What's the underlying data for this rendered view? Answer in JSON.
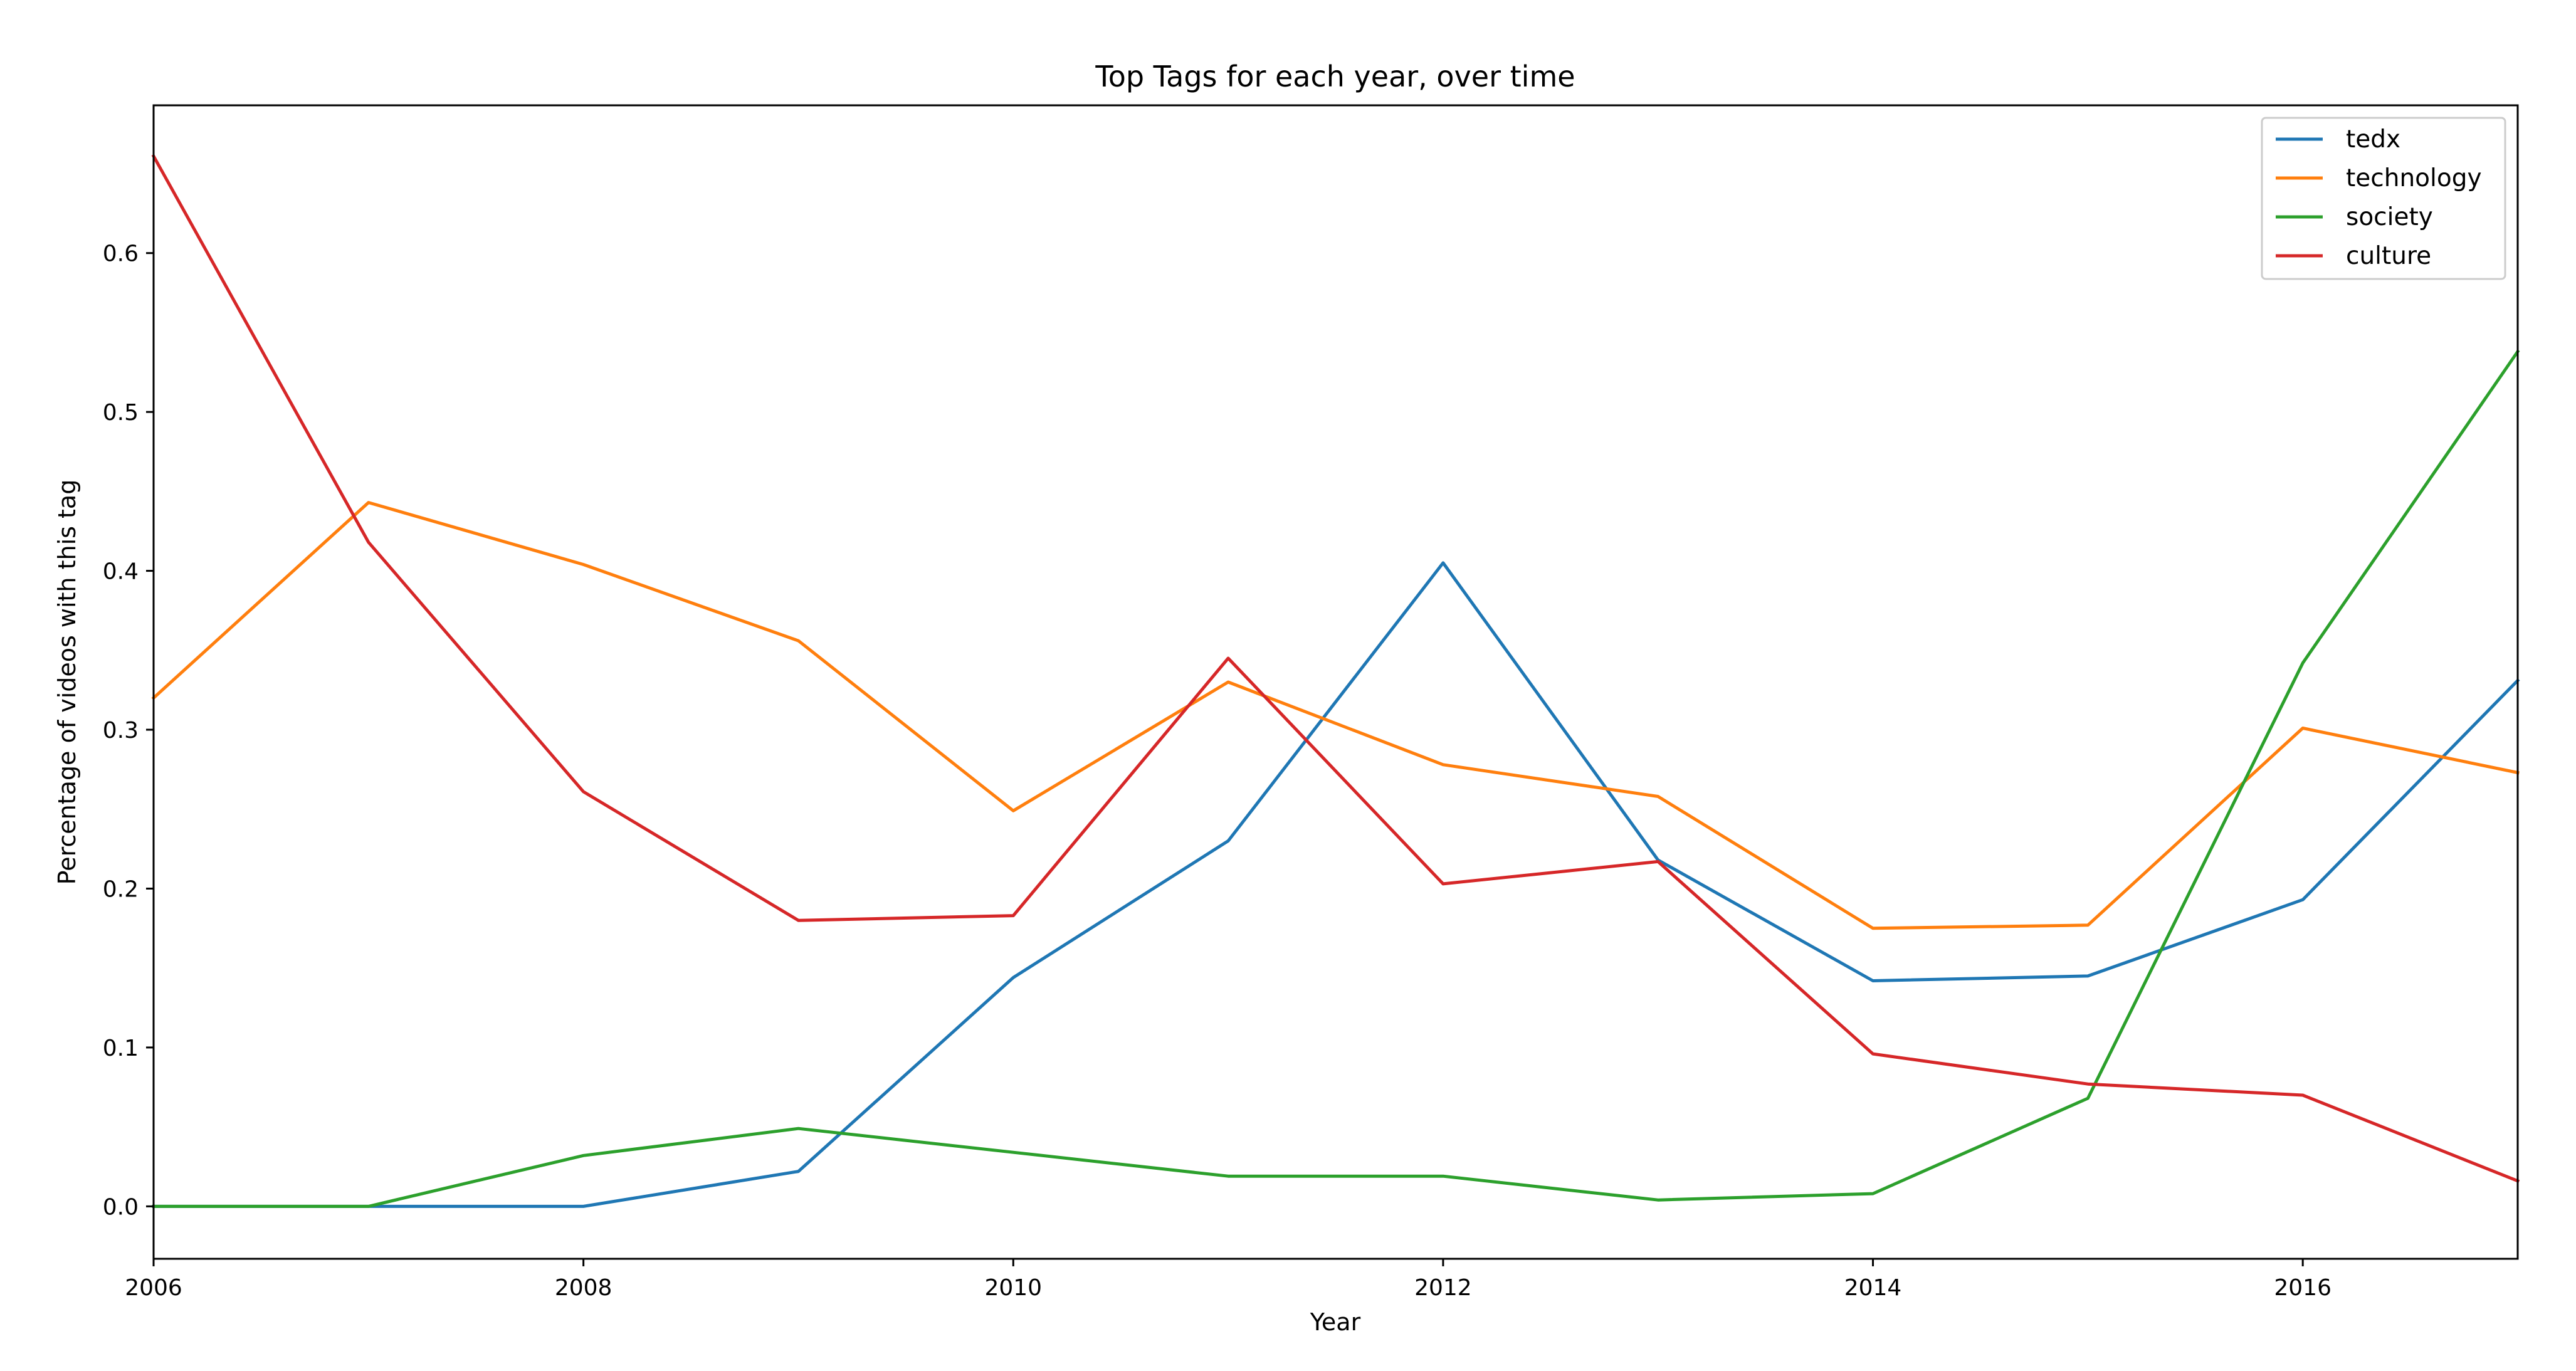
{
  "chart_data": {
    "type": "line",
    "title": "Top Tags for each year, over time",
    "xlabel": "Year",
    "ylabel": "Percentage of videos with this tag",
    "xlim": [
      2006,
      2017
    ],
    "ylim": [
      -0.033,
      0.693
    ],
    "x_ticks": [
      2006,
      2008,
      2010,
      2012,
      2014,
      2016
    ],
    "y_ticks": [
      "0.0",
      "0.1",
      "0.2",
      "0.3",
      "0.4",
      "0.5",
      "0.6"
    ],
    "x": [
      2006,
      2007,
      2008,
      2009,
      2010,
      2011,
      2012,
      2013,
      2014,
      2015,
      2016,
      2017
    ],
    "grid": false,
    "legend_position": "top-right",
    "series": [
      {
        "name": "tedx",
        "color": "#1f77b4",
        "values": [
          0.0,
          0.0,
          0.0,
          0.022,
          0.144,
          0.23,
          0.405,
          0.218,
          0.142,
          0.145,
          0.193,
          0.331
        ]
      },
      {
        "name": "technology",
        "color": "#ff7f0e",
        "values": [
          0.32,
          0.443,
          0.404,
          0.356,
          0.249,
          0.33,
          0.278,
          0.258,
          0.175,
          0.177,
          0.301,
          0.273
        ]
      },
      {
        "name": "society",
        "color": "#2ca02c",
        "values": [
          0.0,
          0.0,
          0.032,
          0.049,
          0.034,
          0.019,
          0.019,
          0.004,
          0.008,
          0.068,
          0.342,
          0.538
        ]
      },
      {
        "name": "culture",
        "color": "#d62728",
        "values": [
          0.661,
          0.418,
          0.261,
          0.18,
          0.183,
          0.345,
          0.203,
          0.217,
          0.096,
          0.077,
          0.07,
          0.016
        ]
      }
    ]
  }
}
